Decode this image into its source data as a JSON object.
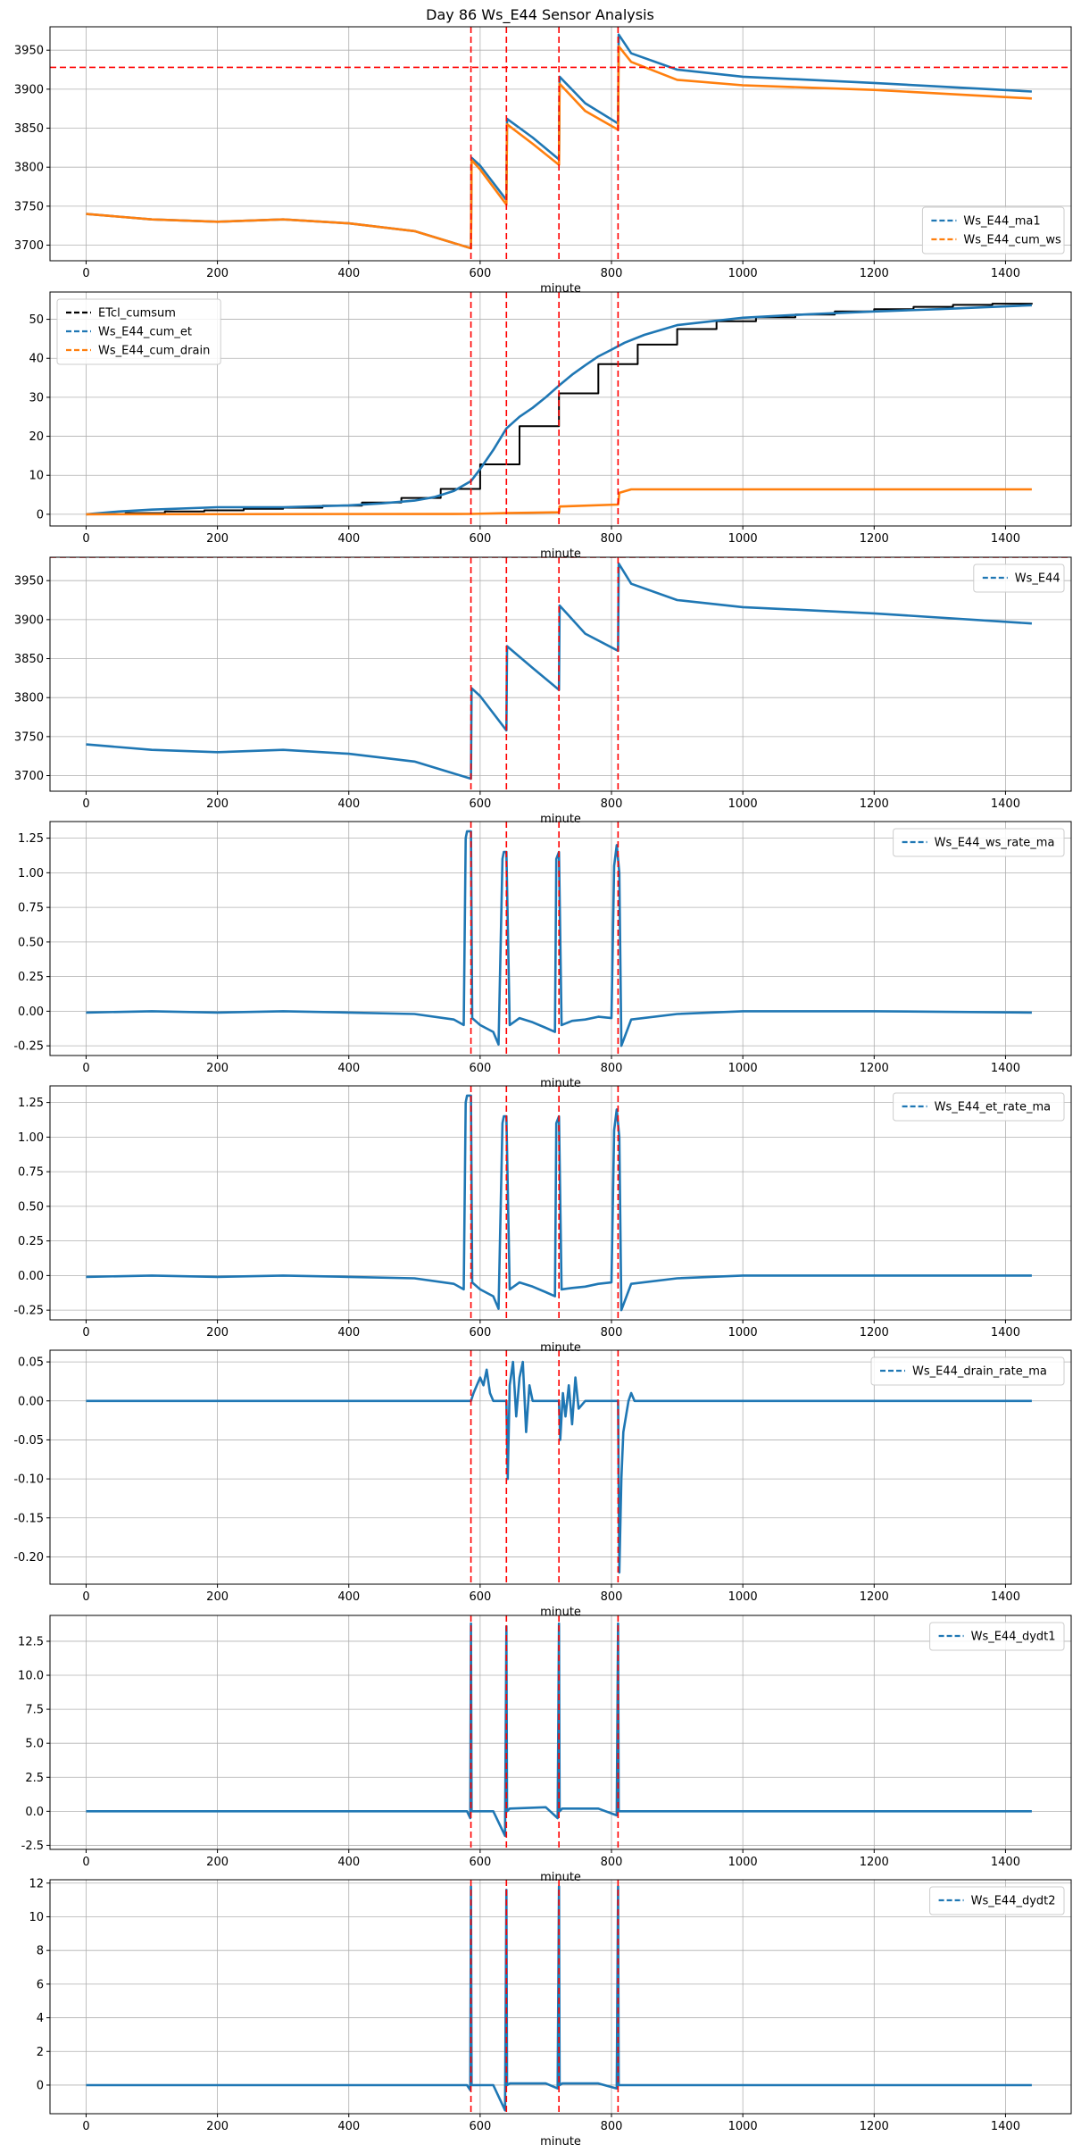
{
  "figure": {
    "title": "Day 86 Ws_E44 Sensor Analysis"
  },
  "events": [
    586,
    640,
    720,
    810
  ],
  "chart_data": [
    {
      "type": "line",
      "xlabel": "minute",
      "xlim": [
        -55,
        1500
      ],
      "ylim": [
        3680,
        3980
      ],
      "xticks": [
        0,
        200,
        400,
        600,
        800,
        1000,
        1200,
        1400
      ],
      "yticks": [
        3700,
        3750,
        3800,
        3850,
        3900,
        3950
      ],
      "hline": 3928,
      "legend": "lower right",
      "series": [
        {
          "name": "Ws_E44_ma1",
          "color": "#1f77b4",
          "x": [
            0,
            100,
            200,
            300,
            400,
            500,
            586,
            587,
            600,
            640,
            641,
            680,
            720,
            721,
            760,
            810,
            811,
            830,
            900,
            1000,
            1200,
            1440
          ],
          "y": [
            3740,
            3733,
            3730,
            3733,
            3728,
            3718,
            3696,
            3812,
            3802,
            3758,
            3862,
            3838,
            3810,
            3916,
            3882,
            3856,
            3970,
            3946,
            3925,
            3916,
            3908,
            3897
          ]
        },
        {
          "name": "Ws_E44_cum_ws",
          "color": "#ff7f0e",
          "x": [
            0,
            100,
            200,
            300,
            400,
            500,
            586,
            587,
            600,
            640,
            641,
            680,
            720,
            721,
            760,
            810,
            811,
            830,
            900,
            1000,
            1200,
            1440
          ],
          "y": [
            3740,
            3733,
            3730,
            3733,
            3728,
            3718,
            3696,
            3809,
            3797,
            3752,
            3855,
            3830,
            3803,
            3907,
            3872,
            3848,
            3955,
            3935,
            3912,
            3905,
            3899,
            3888
          ]
        }
      ]
    },
    {
      "type": "line",
      "xlabel": "minute",
      "xlim": [
        -55,
        1500
      ],
      "ylim": [
        -3,
        57
      ],
      "xticks": [
        0,
        200,
        400,
        600,
        800,
        1000,
        1200,
        1400
      ],
      "yticks": [
        0,
        10,
        20,
        30,
        40,
        50
      ],
      "legend": "upper left",
      "series": [
        {
          "name": "ETcl_cumsum",
          "color": "#000000",
          "step": true,
          "x": [
            0,
            60,
            120,
            180,
            240,
            300,
            360,
            420,
            480,
            540,
            600,
            660,
            720,
            780,
            840,
            900,
            960,
            1020,
            1080,
            1140,
            1200,
            1260,
            1320,
            1380,
            1440
          ],
          "y": [
            0,
            0.3,
            0.7,
            1,
            1.4,
            1.7,
            2.2,
            3,
            4.2,
            6.5,
            12.8,
            22.6,
            31,
            38.5,
            43.5,
            47.5,
            49.5,
            50.5,
            51.2,
            52,
            52.6,
            53.2,
            53.7,
            54,
            54.2
          ]
        },
        {
          "name": "Ws_E44_cum_et",
          "color": "#1f77b4",
          "x": [
            0,
            50,
            100,
            200,
            300,
            400,
            450,
            500,
            530,
            560,
            586,
            600,
            620,
            640,
            660,
            680,
            700,
            720,
            740,
            760,
            780,
            800,
            820,
            850,
            900,
            1000,
            1100,
            1200,
            1300,
            1440
          ],
          "y": [
            0,
            0.7,
            1.2,
            1.8,
            1.8,
            2.3,
            2.8,
            3.5,
            4.4,
            6,
            8.5,
            11.6,
            16.5,
            22,
            25,
            27.3,
            30,
            33,
            35.8,
            38.2,
            40.5,
            42.2,
            44,
            46,
            48.5,
            50.4,
            51.3,
            52,
            52.6,
            53.6
          ]
        },
        {
          "name": "Ws_E44_cum_drain",
          "color": "#ff7f0e",
          "x": [
            0,
            586,
            640,
            720,
            721,
            810,
            812,
            830,
            1440
          ],
          "y": [
            0,
            0.1,
            0.3,
            0.5,
            2,
            2.5,
            5.5,
            6.4,
            6.4
          ]
        }
      ]
    },
    {
      "type": "line",
      "xlabel": "minute",
      "xlim": [
        -55,
        1500
      ],
      "ylim": [
        3680,
        3980
      ],
      "xticks": [
        0,
        200,
        400,
        600,
        800,
        1000,
        1200,
        1400
      ],
      "yticks": [
        3700,
        3750,
        3800,
        3850,
        3900,
        3950
      ],
      "hline": 3980,
      "legend": "upper right",
      "series": [
        {
          "name": "Ws_E44",
          "color": "#1f77b4",
          "x": [
            0,
            100,
            200,
            300,
            400,
            500,
            586,
            587,
            600,
            640,
            641,
            680,
            720,
            721,
            760,
            810,
            811,
            830,
            900,
            1000,
            1200,
            1440
          ],
          "y": [
            3740,
            3733,
            3730,
            3733,
            3728,
            3718,
            3696,
            3812,
            3802,
            3758,
            3866,
            3838,
            3810,
            3918,
            3882,
            3860,
            3972,
            3946,
            3925,
            3916,
            3908,
            3895
          ]
        }
      ]
    },
    {
      "type": "line",
      "xlabel": "minute",
      "xlim": [
        -55,
        1500
      ],
      "ylim": [
        -0.32,
        1.37
      ],
      "xticks": [
        0,
        200,
        400,
        600,
        800,
        1000,
        1200,
        1400
      ],
      "yticks": [
        -0.25,
        0,
        0.25,
        0.5,
        0.75,
        1.0,
        1.25
      ],
      "ytick_labels": [
        "-0.25",
        "0.00",
        "0.25",
        "0.50",
        "0.75",
        "1.00",
        "1.25"
      ],
      "legend": "upper right",
      "series": [
        {
          "name": "Ws_E44_ws_rate_ma",
          "color": "#1f77b4",
          "x": [
            0,
            100,
            200,
            300,
            400,
            500,
            560,
            575,
            578,
            580,
            586,
            588,
            600,
            620,
            628,
            634,
            636,
            640,
            645,
            660,
            680,
            700,
            714,
            716,
            720,
            724,
            740,
            760,
            780,
            800,
            804,
            808,
            812,
            815,
            830,
            900,
            1000,
            1200,
            1440
          ],
          "y": [
            -0.01,
            0,
            -0.01,
            0,
            -0.01,
            -0.02,
            -0.06,
            -0.1,
            1.25,
            1.3,
            1.3,
            -0.05,
            -0.1,
            -0.15,
            -0.24,
            1.1,
            1.15,
            1.15,
            -0.1,
            -0.05,
            -0.08,
            -0.12,
            -0.15,
            1.1,
            1.15,
            -0.1,
            -0.07,
            -0.06,
            -0.04,
            -0.05,
            1.05,
            1.2,
            1.0,
            -0.25,
            -0.06,
            -0.02,
            0,
            0,
            -0.01
          ]
        }
      ]
    },
    {
      "type": "line",
      "xlabel": "minute",
      "xlim": [
        -55,
        1500
      ],
      "ylim": [
        -0.32,
        1.37
      ],
      "xticks": [
        0,
        200,
        400,
        600,
        800,
        1000,
        1200,
        1400
      ],
      "yticks": [
        -0.25,
        0,
        0.25,
        0.5,
        0.75,
        1.0,
        1.25
      ],
      "ytick_labels": [
        "-0.25",
        "0.00",
        "0.25",
        "0.50",
        "0.75",
        "1.00",
        "1.25"
      ],
      "legend": "upper right",
      "series": [
        {
          "name": "Ws_E44_et_rate_ma",
          "color": "#1f77b4",
          "x": [
            0,
            100,
            200,
            300,
            400,
            500,
            560,
            575,
            578,
            580,
            586,
            588,
            600,
            620,
            628,
            634,
            636,
            640,
            645,
            660,
            680,
            700,
            714,
            716,
            720,
            724,
            740,
            760,
            780,
            800,
            804,
            808,
            812,
            815,
            830,
            900,
            1000,
            1200,
            1440
          ],
          "y": [
            -0.01,
            0,
            -0.01,
            0,
            -0.01,
            -0.02,
            -0.06,
            -0.1,
            1.25,
            1.3,
            1.3,
            -0.05,
            -0.1,
            -0.15,
            -0.24,
            1.1,
            1.15,
            1.15,
            -0.1,
            -0.05,
            -0.08,
            -0.12,
            -0.15,
            1.1,
            1.15,
            -0.1,
            -0.09,
            -0.08,
            -0.06,
            -0.05,
            1.05,
            1.2,
            1.0,
            -0.25,
            -0.06,
            -0.02,
            0,
            0,
            0
          ]
        }
      ]
    },
    {
      "type": "line",
      "xlabel": "minute",
      "xlim": [
        -55,
        1500
      ],
      "ylim": [
        -0.235,
        0.065
      ],
      "xticks": [
        0,
        200,
        400,
        600,
        800,
        1000,
        1200,
        1400
      ],
      "yticks": [
        -0.2,
        -0.15,
        -0.1,
        -0.05,
        0,
        0.05
      ],
      "ytick_labels": [
        "-0.20",
        "-0.15",
        "-0.10",
        "-0.05",
        "0.00",
        "0.05"
      ],
      "legend": "upper right",
      "series": [
        {
          "name": "Ws_E44_drain_rate_ma",
          "color": "#1f77b4",
          "x": [
            0,
            586,
            590,
            595,
            600,
            605,
            610,
            615,
            620,
            630,
            640,
            642,
            645,
            650,
            655,
            660,
            665,
            670,
            675,
            680,
            700,
            720,
            722,
            726,
            730,
            735,
            740,
            745,
            750,
            760,
            800,
            810,
            812,
            815,
            818,
            822,
            826,
            830,
            835,
            1440
          ],
          "y": [
            0,
            0,
            0.01,
            0.02,
            0.03,
            0.02,
            0.04,
            0.01,
            0,
            0,
            0,
            -0.1,
            0.02,
            0.05,
            -0.02,
            0.03,
            0.05,
            -0.04,
            0.02,
            0,
            0,
            0,
            -0.05,
            0.01,
            -0.02,
            0.02,
            -0.03,
            0.03,
            -0.01,
            0,
            0,
            0,
            -0.22,
            -0.1,
            -0.04,
            -0.02,
            0,
            0.01,
            0,
            0
          ]
        }
      ]
    },
    {
      "type": "line",
      "xlabel": "minute",
      "xlim": [
        -55,
        1500
      ],
      "ylim": [
        -2.8,
        14.4
      ],
      "xticks": [
        0,
        200,
        400,
        600,
        800,
        1000,
        1200,
        1400
      ],
      "yticks": [
        -2.5,
        0,
        2.5,
        5,
        7.5,
        10,
        12.5
      ],
      "ytick_labels": [
        "-2.5",
        "0.0",
        "2.5",
        "5.0",
        "7.5",
        "10.0",
        "12.5"
      ],
      "legend": "upper right",
      "series": [
        {
          "name": "Ws_E44_dydt1",
          "color": "#1f77b4",
          "x": [
            0,
            580,
            585,
            586,
            587,
            590,
            620,
            638,
            640,
            641,
            645,
            700,
            718,
            720,
            721,
            725,
            780,
            808,
            810,
            811,
            815,
            1440
          ],
          "y": [
            0,
            0,
            -0.5,
            13.8,
            0,
            0,
            0,
            -1.8,
            13.6,
            0,
            0.2,
            0.3,
            -0.5,
            13.8,
            0,
            0.2,
            0.2,
            -0.3,
            13.8,
            0,
            0,
            0
          ]
        }
      ]
    },
    {
      "type": "line",
      "xlabel": "minute",
      "xlim": [
        -55,
        1500
      ],
      "ylim": [
        -1.7,
        12.2
      ],
      "xticks": [
        0,
        200,
        400,
        600,
        800,
        1000,
        1200,
        1400
      ],
      "yticks": [
        0,
        2,
        4,
        6,
        8,
        10,
        12
      ],
      "legend": "upper right",
      "series": [
        {
          "name": "Ws_E44_dydt2",
          "color": "#1f77b4",
          "x": [
            0,
            580,
            585,
            586,
            587,
            590,
            620,
            638,
            640,
            641,
            645,
            700,
            718,
            720,
            721,
            725,
            780,
            808,
            810,
            811,
            815,
            1440
          ],
          "y": [
            0,
            0,
            -0.3,
            11.8,
            0,
            0,
            0,
            -1.5,
            11.6,
            0,
            0.1,
            0.1,
            -0.2,
            11.8,
            0,
            0.1,
            0.1,
            -0.2,
            11.8,
            0,
            0,
            0
          ]
        }
      ]
    }
  ]
}
